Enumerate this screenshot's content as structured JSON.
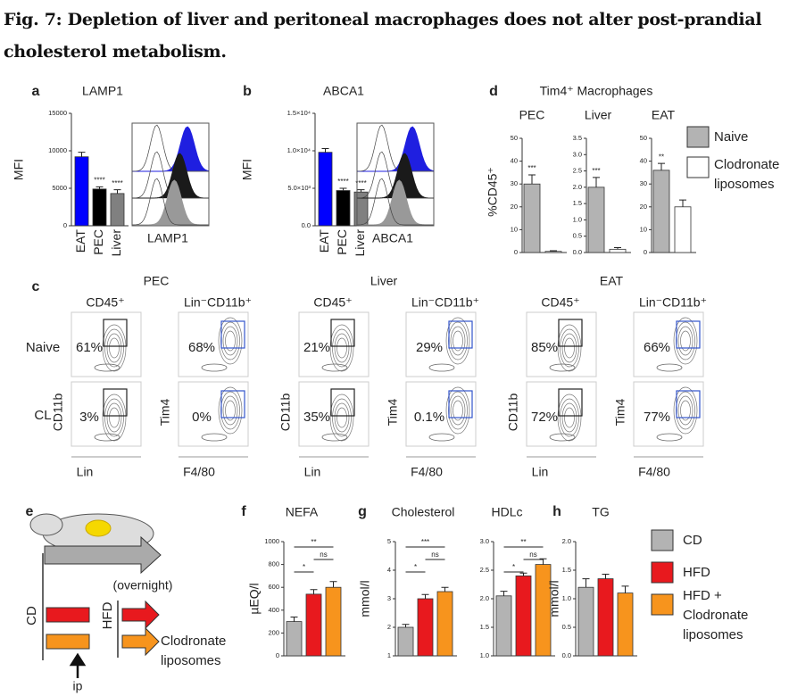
{
  "title": "Fig. 7: Depletion of liver and peritoneal macrophages does not alter post-prandial cholesterol metabolism.",
  "panel_labels": [
    "a",
    "b",
    "c",
    "d",
    "e",
    "f",
    "g",
    "h"
  ],
  "histograms": [
    {
      "xlabel": "LAMP1"
    },
    {
      "xlabel": "ABCA1"
    }
  ],
  "panel_c": {
    "groups": [
      "PEC",
      "Liver",
      "EAT"
    ],
    "columns": [
      "CD45⁺",
      "Lin⁻CD11b⁺"
    ],
    "rows": [
      "Naive",
      "CL"
    ],
    "x_labels": [
      "Lin",
      "F4/80"
    ],
    "y_labels": [
      "CD11b",
      "Tim4"
    ],
    "gates": [
      [
        [
          "61%",
          "68%"
        ],
        [
          "3%",
          "0%"
        ]
      ],
      [
        [
          "21%",
          "29%"
        ],
        [
          "35%",
          "0.1%"
        ]
      ],
      [
        [
          "85%",
          "66%"
        ],
        [
          "72%",
          "77%"
        ]
      ]
    ]
  },
  "panel_d": {
    "title": "Tim4⁺ Macrophages",
    "ylabel": "%CD45⁺",
    "legend": [
      {
        "name": "Naive",
        "color": "#b3b3b3"
      },
      {
        "name": "Clodronate liposomes",
        "color": "#ffffff"
      }
    ]
  },
  "panel_e": {
    "diet": "CD",
    "duration": "(overnight)",
    "treatment_group": "HFD",
    "treatment": "Clodronate liposomes",
    "route": "ip"
  },
  "legend_fgh": [
    {
      "name": "CD",
      "color": "#b3b3b3"
    },
    {
      "name": "HFD",
      "color": "#e8191e"
    },
    {
      "name": "HFD + Clodronate liposomes",
      "color": "#f7941d"
    }
  ],
  "chart_data": [
    {
      "type": "bar",
      "title": "LAMP1",
      "ylabel": "MFI",
      "categories": [
        "EAT",
        "PEC",
        "Liver"
      ],
      "values": [
        9200,
        4900,
        4300
      ],
      "errors": [
        600,
        300,
        500
      ],
      "colors": [
        "#0000ff",
        "#000000",
        "#808080"
      ],
      "significance": [
        null,
        "****",
        "****"
      ],
      "ylim": [
        0,
        15000
      ],
      "yticks": [
        0,
        5000,
        10000,
        15000
      ]
    },
    {
      "type": "bar",
      "title": "ABCA1",
      "ylabel": "MFI",
      "categories": [
        "EAT",
        "PEC",
        "Liver"
      ],
      "values": [
        9800,
        4700,
        4500
      ],
      "errors": [
        500,
        300,
        300
      ],
      "colors": [
        "#0000ff",
        "#000000",
        "#808080"
      ],
      "significance": [
        null,
        "****",
        "****"
      ],
      "ylim": [
        0,
        15000
      ],
      "yticks": [
        {
          "value": 0,
          "label": "0.0"
        },
        {
          "value": 5000,
          "label": "5.0×10³"
        },
        {
          "value": 10000,
          "label": "1.0×10⁴"
        },
        {
          "value": 15000,
          "label": "1.5×10⁴"
        }
      ]
    },
    {
      "type": "bar",
      "title": "PEC",
      "values": [
        30,
        0.5
      ],
      "errors": [
        4,
        0.3
      ],
      "colors": [
        "#b3b3b3",
        "#ffffff"
      ],
      "significance": [
        "***",
        null
      ],
      "ylim": [
        0,
        50
      ],
      "yticks": [
        0,
        10,
        20,
        30,
        40,
        50
      ]
    },
    {
      "type": "bar",
      "title": "Liver",
      "values": [
        2.0,
        0.1
      ],
      "errors": [
        0.3,
        0.05
      ],
      "colors": [
        "#b3b3b3",
        "#ffffff"
      ],
      "significance": [
        "***",
        null
      ],
      "ylim": [
        0,
        3.5
      ],
      "yticks": [
        {
          "value": 0,
          "label": "0.0"
        },
        0.5,
        {
          "value": 1,
          "label": "1.0"
        },
        1.5,
        {
          "value": 2,
          "label": "2.0"
        },
        2.5,
        {
          "value": 3,
          "label": "3.0"
        },
        3.5
      ]
    },
    {
      "type": "bar",
      "title": "EAT",
      "values": [
        36,
        20
      ],
      "errors": [
        3,
        3
      ],
      "colors": [
        "#b3b3b3",
        "#ffffff"
      ],
      "significance": [
        "**",
        null
      ],
      "ylim": [
        0,
        50
      ],
      "yticks": [
        0,
        10,
        20,
        30,
        40,
        50
      ]
    },
    {
      "type": "bar",
      "title": "NEFA",
      "ylabel": "µEQ/l",
      "values": [
        300,
        540,
        600
      ],
      "errors": [
        40,
        40,
        50
      ],
      "colors": [
        "#b3b3b3",
        "#e8191e",
        "#f7941d"
      ],
      "brackets": [
        {
          "from": 0,
          "to": 1,
          "label": "*"
        },
        {
          "from": 1,
          "to": 2,
          "label": "ns"
        },
        {
          "from": 0,
          "to": 2,
          "label": "**"
        }
      ],
      "ylim": [
        0,
        1000
      ],
      "yticks": [
        0,
        200,
        400,
        600,
        800,
        1000
      ]
    },
    {
      "type": "bar",
      "title": "Cholesterol",
      "ylabel": "mmol/l",
      "values": [
        2.0,
        3.0,
        3.25
      ],
      "errors": [
        0.1,
        0.15,
        0.15
      ],
      "colors": [
        "#b3b3b3",
        "#e8191e",
        "#f7941d"
      ],
      "brackets": [
        {
          "from": 0,
          "to": 1,
          "label": "*"
        },
        {
          "from": 1,
          "to": 2,
          "label": "ns"
        },
        {
          "from": 0,
          "to": 2,
          "label": "***"
        }
      ],
      "ylim": [
        1,
        5
      ],
      "yticks": [
        1,
        2,
        3,
        4,
        5
      ]
    },
    {
      "type": "bar",
      "title": "HDLc",
      "values": [
        2.05,
        2.4,
        2.6
      ],
      "errors": [
        0.08,
        0.05,
        0.1
      ],
      "colors": [
        "#b3b3b3",
        "#e8191e",
        "#f7941d"
      ],
      "brackets": [
        {
          "from": 0,
          "to": 1,
          "label": "*"
        },
        {
          "from": 1,
          "to": 2,
          "label": "ns"
        },
        {
          "from": 0,
          "to": 2,
          "label": "**"
        }
      ],
      "ylim": [
        1,
        3
      ],
      "yticks": [
        {
          "value": 1,
          "label": "1.0"
        },
        1.5,
        {
          "value": 2,
          "label": "2.0"
        },
        2.5,
        {
          "value": 3,
          "label": "3.0"
        }
      ]
    },
    {
      "type": "bar",
      "title": "TG",
      "ylabel": "mmol/l",
      "values": [
        1.2,
        1.35,
        1.1
      ],
      "errors": [
        0.15,
        0.08,
        0.12
      ],
      "colors": [
        "#b3b3b3",
        "#e8191e",
        "#f7941d"
      ],
      "ylim": [
        0,
        2
      ],
      "yticks": [
        {
          "value": 0,
          "label": "0.0"
        },
        0.5,
        {
          "value": 1,
          "label": "1.0"
        },
        1.5,
        {
          "value": 2,
          "label": "2.0"
        }
      ]
    }
  ]
}
